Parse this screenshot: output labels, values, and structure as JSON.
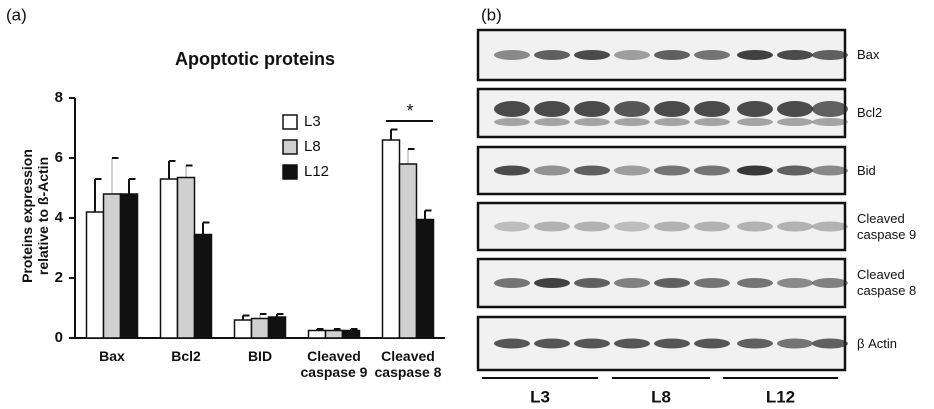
{
  "chart_data": {
    "type": "bar",
    "panel_label": "(a)",
    "title": "Apoptotic proteins",
    "y_label": "Proteins expression relative to ß-Actin",
    "categories": [
      "Bax",
      "Bcl2",
      "BID",
      "Cleaved caspase 9",
      "Cleaved caspase 8"
    ],
    "series": [
      {
        "name": "L3",
        "color": "#ffffff",
        "values": [
          4.2,
          5.3,
          0.6,
          0.25,
          6.6
        ],
        "errors": [
          1.1,
          0.6,
          0.15,
          0.05,
          0.35
        ]
      },
      {
        "name": "L8",
        "color": "#d0d0d0",
        "values": [
          4.8,
          5.35,
          0.65,
          0.25,
          5.8
        ],
        "errors": [
          1.2,
          0.4,
          0.15,
          0.05,
          0.5
        ]
      },
      {
        "name": "L12",
        "color": "#111111",
        "values": [
          4.8,
          3.45,
          0.7,
          0.25,
          3.95
        ],
        "errors": [
          0.5,
          0.4,
          0.1,
          0.05,
          0.3
        ]
      }
    ],
    "ylim": [
      0,
      8
    ],
    "yticks": [
      0,
      2,
      4,
      6,
      8
    ],
    "annotation": "*"
  },
  "blot": {
    "panel_label": "(b)",
    "rows": [
      "Bax",
      "Bcl2",
      "Bid",
      "Cleaved caspase 9",
      "Cleaved caspase 8",
      "β Actin"
    ],
    "groups": [
      "L3",
      "L8",
      "L12"
    ]
  }
}
